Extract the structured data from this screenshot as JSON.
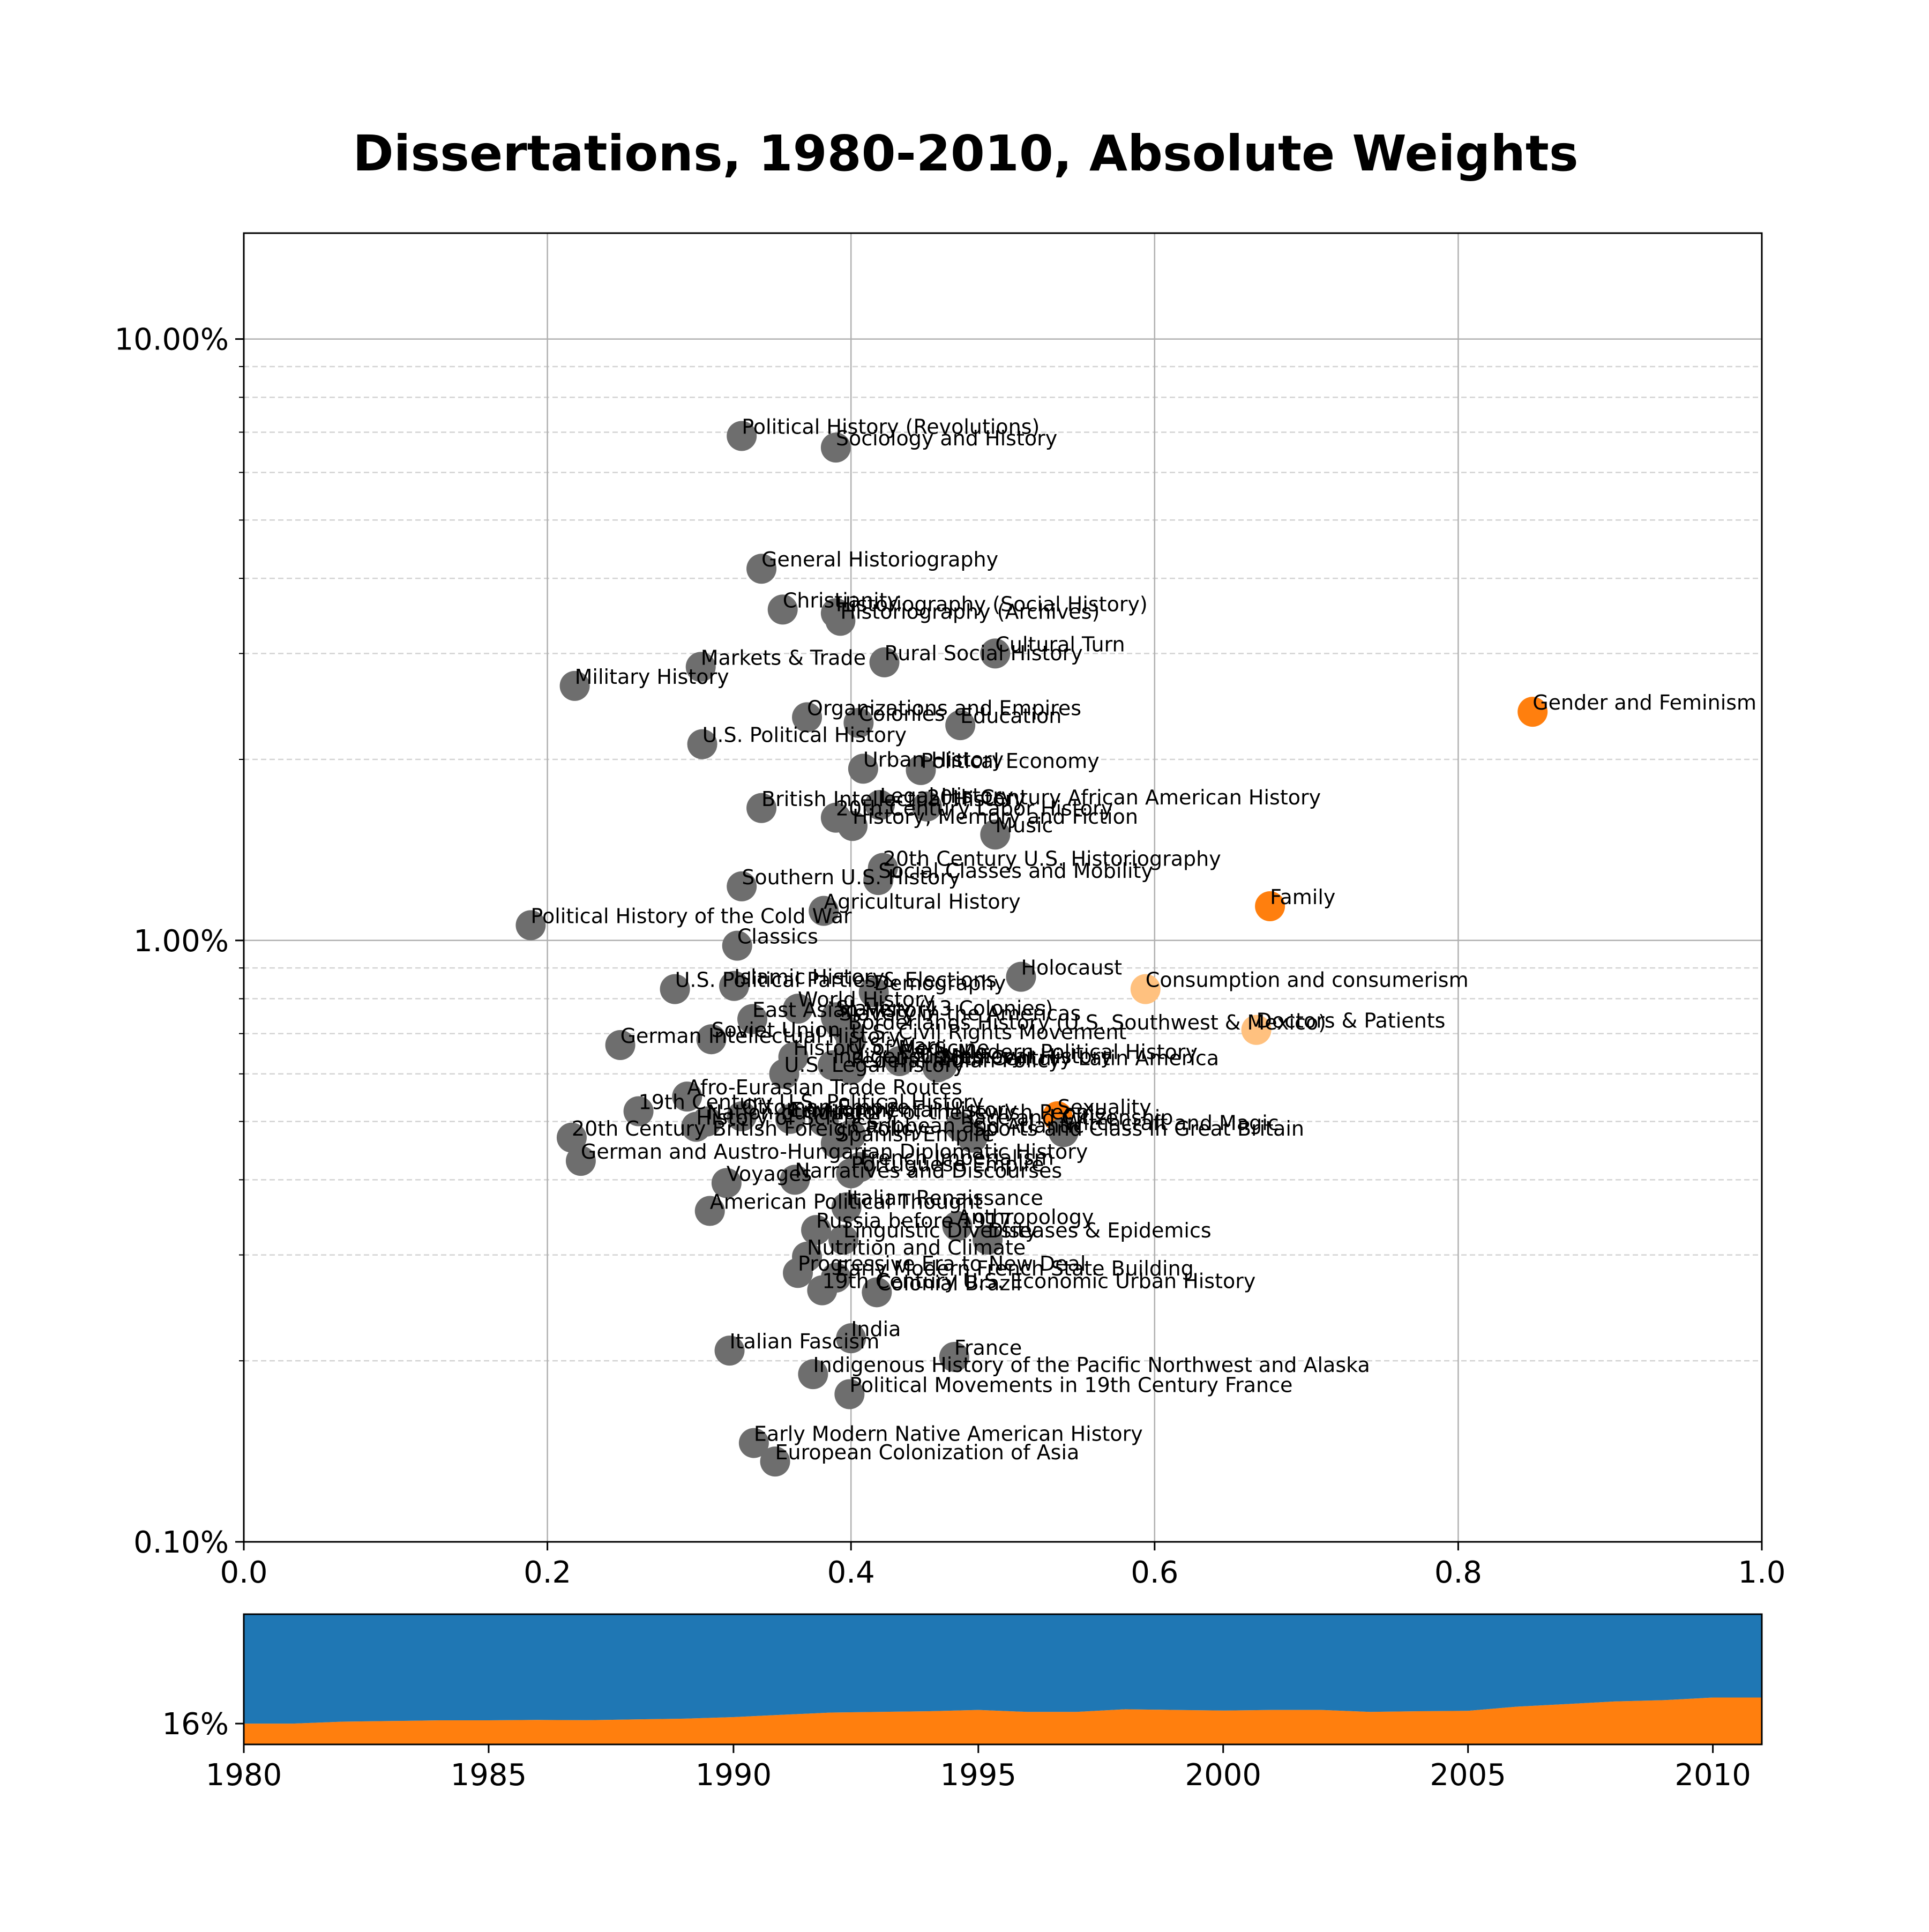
{
  "colors": {
    "gray": "#6e6e6e",
    "orange": "#ff7f0e",
    "light_orange": "#ffc17f",
    "area_blue": "#1f77b4",
    "area_orange": "#ff7f0e",
    "grid_major": "#b0b0b0",
    "grid_minor": "#d3d3d3"
  },
  "chart_data": [
    {
      "type": "scatter",
      "title": "Dissertations, 1980-2010, Absolute Weights",
      "xlabel": "",
      "ylabel": "",
      "xlim": [
        0,
        1
      ],
      "ylim": [
        0.1,
        15
      ],
      "y_scale": "log",
      "grid": true,
      "x_ticks": [
        "0.0",
        "0.2",
        "0.4",
        "0.6",
        "0.8",
        "1.0"
      ],
      "y_ticks": [
        {
          "value": 10,
          "label": "10.00%"
        },
        {
          "value": 1,
          "label": "1.00%"
        },
        {
          "value": 0.1,
          "label": "0.10%"
        }
      ],
      "points": [
        {
          "label": "Political History (Revolutions)",
          "x": 0.328,
          "y": 6.9,
          "color": "gray"
        },
        {
          "label": "Sociology and History",
          "x": 0.39,
          "y": 6.6,
          "color": "gray"
        },
        {
          "label": "General Historiography",
          "x": 0.341,
          "y": 4.15,
          "color": "gray"
        },
        {
          "label": "Christianity",
          "x": 0.355,
          "y": 3.55,
          "color": "gray"
        },
        {
          "label": "Historiography (Social History)",
          "x": 0.39,
          "y": 3.5,
          "color": "gray"
        },
        {
          "label": "Historiography (Archives)",
          "x": 0.393,
          "y": 3.4,
          "color": "gray"
        },
        {
          "label": "Cultural Turn",
          "x": 0.495,
          "y": 3.0,
          "color": "gray"
        },
        {
          "label": "Markets & Trade",
          "x": 0.301,
          "y": 2.85,
          "color": "gray"
        },
        {
          "label": "Rural Social History",
          "x": 0.422,
          "y": 2.9,
          "color": "gray"
        },
        {
          "label": "Military History",
          "x": 0.218,
          "y": 2.65,
          "color": "gray"
        },
        {
          "label": "Organizations and Empires",
          "x": 0.371,
          "y": 2.35,
          "color": "gray"
        },
        {
          "label": "Colonies",
          "x": 0.405,
          "y": 2.3,
          "color": "gray"
        },
        {
          "label": "Education",
          "x": 0.472,
          "y": 2.28,
          "color": "gray"
        },
        {
          "label": "Gender and Feminism",
          "x": 0.849,
          "y": 2.4,
          "color": "orange"
        },
        {
          "label": "U.S. Political History",
          "x": 0.302,
          "y": 2.12,
          "color": "gray"
        },
        {
          "label": "Urban History",
          "x": 0.408,
          "y": 1.93,
          "color": "gray"
        },
        {
          "label": "Political Economy",
          "x": 0.446,
          "y": 1.92,
          "color": "gray"
        },
        {
          "label": "British Intellectual History",
          "x": 0.341,
          "y": 1.66,
          "color": "gray"
        },
        {
          "label": "Legal History",
          "x": 0.419,
          "y": 1.68,
          "color": "gray"
        },
        {
          "label": "20th Century African American History",
          "x": 0.45,
          "y": 1.67,
          "color": "gray"
        },
        {
          "label": "20th Century Labor History",
          "x": 0.39,
          "y": 1.6,
          "color": "gray"
        },
        {
          "label": "History, Memory and Fiction",
          "x": 0.401,
          "y": 1.55,
          "color": "gray"
        },
        {
          "label": "Music",
          "x": 0.495,
          "y": 1.5,
          "color": "gray"
        },
        {
          "label": "20th Century U.S. Historiography",
          "x": 0.421,
          "y": 1.32,
          "color": "gray"
        },
        {
          "label": "Social Classes and Mobility",
          "x": 0.418,
          "y": 1.26,
          "color": "gray"
        },
        {
          "label": "Southern U.S. History",
          "x": 0.328,
          "y": 1.23,
          "color": "gray"
        },
        {
          "label": "Agricultural History",
          "x": 0.382,
          "y": 1.12,
          "color": "gray"
        },
        {
          "label": "Family",
          "x": 0.676,
          "y": 1.14,
          "color": "orange"
        },
        {
          "label": "Political History of the Cold War",
          "x": 0.189,
          "y": 1.06,
          "color": "gray"
        },
        {
          "label": "Classics",
          "x": 0.325,
          "y": 0.98,
          "color": "gray"
        },
        {
          "label": "Holocaust",
          "x": 0.512,
          "y": 0.87,
          "color": "gray"
        },
        {
          "label": "Consumption and consumerism",
          "x": 0.594,
          "y": 0.83,
          "color": "light_orange"
        },
        {
          "label": "U.S. Political Parties & Elections",
          "x": 0.284,
          "y": 0.83,
          "color": "gray"
        },
        {
          "label": "Islamic History",
          "x": 0.323,
          "y": 0.84,
          "color": "gray"
        },
        {
          "label": "Demography",
          "x": 0.415,
          "y": 0.82,
          "color": "gray"
        },
        {
          "label": "World History",
          "x": 0.365,
          "y": 0.77,
          "color": "gray"
        },
        {
          "label": "East Asian History",
          "x": 0.335,
          "y": 0.74,
          "color": "gray"
        },
        {
          "label": "Slavery (13 Colonies)",
          "x": 0.39,
          "y": 0.745,
          "color": "gray"
        },
        {
          "label": "Slavery in the Americas",
          "x": 0.392,
          "y": 0.73,
          "color": "gray"
        },
        {
          "label": "Doctors & Patients",
          "x": 0.667,
          "y": 0.71,
          "color": "light_orange"
        },
        {
          "label": "Borderlands History (U.S. Southwest & Mexico)",
          "x": 0.398,
          "y": 0.705,
          "color": "gray"
        },
        {
          "label": "German Intellectual History",
          "x": 0.248,
          "y": 0.67,
          "color": "gray"
        },
        {
          "label": "Soviet Union",
          "x": 0.308,
          "y": 0.685,
          "color": "gray"
        },
        {
          "label": "U.S. Civil Rights Movement",
          "x": 0.4,
          "y": 0.68,
          "color": "gray"
        },
        {
          "label": "History of Medicine",
          "x": 0.362,
          "y": 0.64,
          "color": "gray"
        },
        {
          "label": "U.S. Wars",
          "x": 0.398,
          "y": 0.645,
          "color": "gray"
        },
        {
          "label": "Early Modern Political History",
          "x": 0.432,
          "y": 0.63,
          "color": "gray"
        },
        {
          "label": "Medieval History",
          "x": 0.46,
          "y": 0.62,
          "color": "gray"
        },
        {
          "label": "20th Century Latin America",
          "x": 0.457,
          "y": 0.615,
          "color": "gray"
        },
        {
          "label": "Federal Indian Policy",
          "x": 0.4,
          "y": 0.61,
          "color": "gray"
        },
        {
          "label": "Indigenous History",
          "x": 0.388,
          "y": 0.62,
          "color": "gray"
        },
        {
          "label": "U.S. Legal History",
          "x": 0.356,
          "y": 0.6,
          "color": "gray"
        },
        {
          "label": "Afro-Eurasian Trade Routes",
          "x": 0.292,
          "y": 0.55,
          "color": "gray"
        },
        {
          "label": "19th Century U.S. Political History",
          "x": 0.26,
          "y": 0.52,
          "color": "gray"
        },
        {
          "label": "Sexuality",
          "x": 0.536,
          "y": 0.51,
          "color": "orange"
        },
        {
          "label": "Witchcraft and Magic",
          "x": 0.54,
          "y": 0.48,
          "color": "gray"
        },
        {
          "label": "Ottoman Empire",
          "x": 0.328,
          "y": 0.51,
          "color": "gray"
        },
        {
          "label": "Environmental History",
          "x": 0.36,
          "y": 0.505,
          "color": "gray"
        },
        {
          "label": "Nation-building",
          "x": 0.305,
          "y": 0.5,
          "color": "gray"
        },
        {
          "label": "History of the Jewish People",
          "x": 0.382,
          "y": 0.5,
          "color": "gray"
        },
        {
          "label": "Race and Citizenship",
          "x": 0.472,
          "y": 0.49,
          "color": "gray"
        },
        {
          "label": "History of Science",
          "x": 0.298,
          "y": 0.49,
          "color": "gray"
        },
        {
          "label": "20th Century British Foreign Policy",
          "x": 0.216,
          "y": 0.47,
          "color": "gray"
        },
        {
          "label": "Sports and Class in Great Britain",
          "x": 0.48,
          "y": 0.47,
          "color": "gray"
        },
        {
          "label": "Caribbean and Atlantic",
          "x": 0.4,
          "y": 0.475,
          "color": "gray"
        },
        {
          "label": "Spanish Empire",
          "x": 0.39,
          "y": 0.46,
          "color": "gray"
        },
        {
          "label": "German and Austro-Hungarian Diplomatic History",
          "x": 0.222,
          "y": 0.43,
          "color": "gray"
        },
        {
          "label": "French Imperialism",
          "x": 0.406,
          "y": 0.42,
          "color": "gray"
        },
        {
          "label": "Portuguese Empire",
          "x": 0.4,
          "y": 0.41,
          "color": "gray"
        },
        {
          "label": "Voyages",
          "x": 0.318,
          "y": 0.395,
          "color": "gray"
        },
        {
          "label": "Narratives and Discourses",
          "x": 0.363,
          "y": 0.4,
          "color": "gray"
        },
        {
          "label": "American Political Thought",
          "x": 0.307,
          "y": 0.355,
          "color": "gray"
        },
        {
          "label": "Italian Renaissance",
          "x": 0.397,
          "y": 0.36,
          "color": "gray"
        },
        {
          "label": "Russia before 1917",
          "x": 0.377,
          "y": 0.33,
          "color": "gray"
        },
        {
          "label": "Anthropology",
          "x": 0.47,
          "y": 0.335,
          "color": "gray"
        },
        {
          "label": "Diseases & Epidemics",
          "x": 0.49,
          "y": 0.318,
          "color": "gray"
        },
        {
          "label": "Linguistic Diversity",
          "x": 0.395,
          "y": 0.318,
          "color": "gray"
        },
        {
          "label": "Nutrition and Climate",
          "x": 0.371,
          "y": 0.298,
          "color": "gray"
        },
        {
          "label": "Progressive Era to New Deal",
          "x": 0.365,
          "y": 0.28,
          "color": "gray"
        },
        {
          "label": "Early Modern French State Building",
          "x": 0.39,
          "y": 0.275,
          "color": "gray"
        },
        {
          "label": "19th Century U.S. Economic Urban History",
          "x": 0.381,
          "y": 0.262,
          "color": "gray"
        },
        {
          "label": "Colonial Brazil",
          "x": 0.417,
          "y": 0.26,
          "color": "gray"
        },
        {
          "label": "India",
          "x": 0.4,
          "y": 0.218,
          "color": "gray"
        },
        {
          "label": "Italian Fascism",
          "x": 0.32,
          "y": 0.208,
          "color": "gray"
        },
        {
          "label": "France",
          "x": 0.468,
          "y": 0.203,
          "color": "gray"
        },
        {
          "label": "Indigenous History of the Pacific Northwest and Alaska",
          "x": 0.375,
          "y": 0.19,
          "color": "gray"
        },
        {
          "label": "Political Movements in 19th Century France",
          "x": 0.399,
          "y": 0.176,
          "color": "gray"
        },
        {
          "label": "Early Modern Native American History",
          "x": 0.336,
          "y": 0.146,
          "color": "gray"
        },
        {
          "label": "European Colonization of Asia",
          "x": 0.35,
          "y": 0.136,
          "color": "gray"
        }
      ]
    },
    {
      "type": "area",
      "title": "",
      "x": [
        1980,
        1981,
        1982,
        1983,
        1984,
        1985,
        1986,
        1987,
        1988,
        1989,
        1990,
        1991,
        1992,
        1993,
        1994,
        1995,
        1996,
        1997,
        1998,
        1999,
        2000,
        2001,
        2002,
        2003,
        2004,
        2005,
        2006,
        2007,
        2008,
        2009,
        2010,
        2011
      ],
      "series": [
        {
          "color": "area_orange",
          "values": [
            16,
            16,
            17.5,
            18,
            18.5,
            18.5,
            18.8,
            18.6,
            19.2,
            19.8,
            21,
            22.8,
            24.5,
            25,
            25.5,
            26.5,
            25,
            25,
            27,
            26.5,
            26,
            26.5,
            26.5,
            25,
            25.5,
            25.8,
            29,
            31,
            33,
            34,
            36,
            36
          ]
        },
        {
          "color": "area_blue",
          "values": [
            84,
            84,
            82.5,
            82,
            81.5,
            81.5,
            81.2,
            81.4,
            80.8,
            80.2,
            79,
            77.2,
            75.5,
            75,
            74.5,
            73.5,
            75,
            75,
            73,
            73.5,
            74,
            73.5,
            73.5,
            75,
            74.5,
            74.2,
            71,
            69,
            67,
            66,
            64,
            64
          ]
        }
      ],
      "ylim": [
        0,
        100
      ],
      "x_ticks": [
        "1980",
        "1985",
        "1990",
        "1995",
        "2000",
        "2005",
        "2010"
      ],
      "y_tick_label": "16%",
      "y_tick_value": 16
    }
  ]
}
